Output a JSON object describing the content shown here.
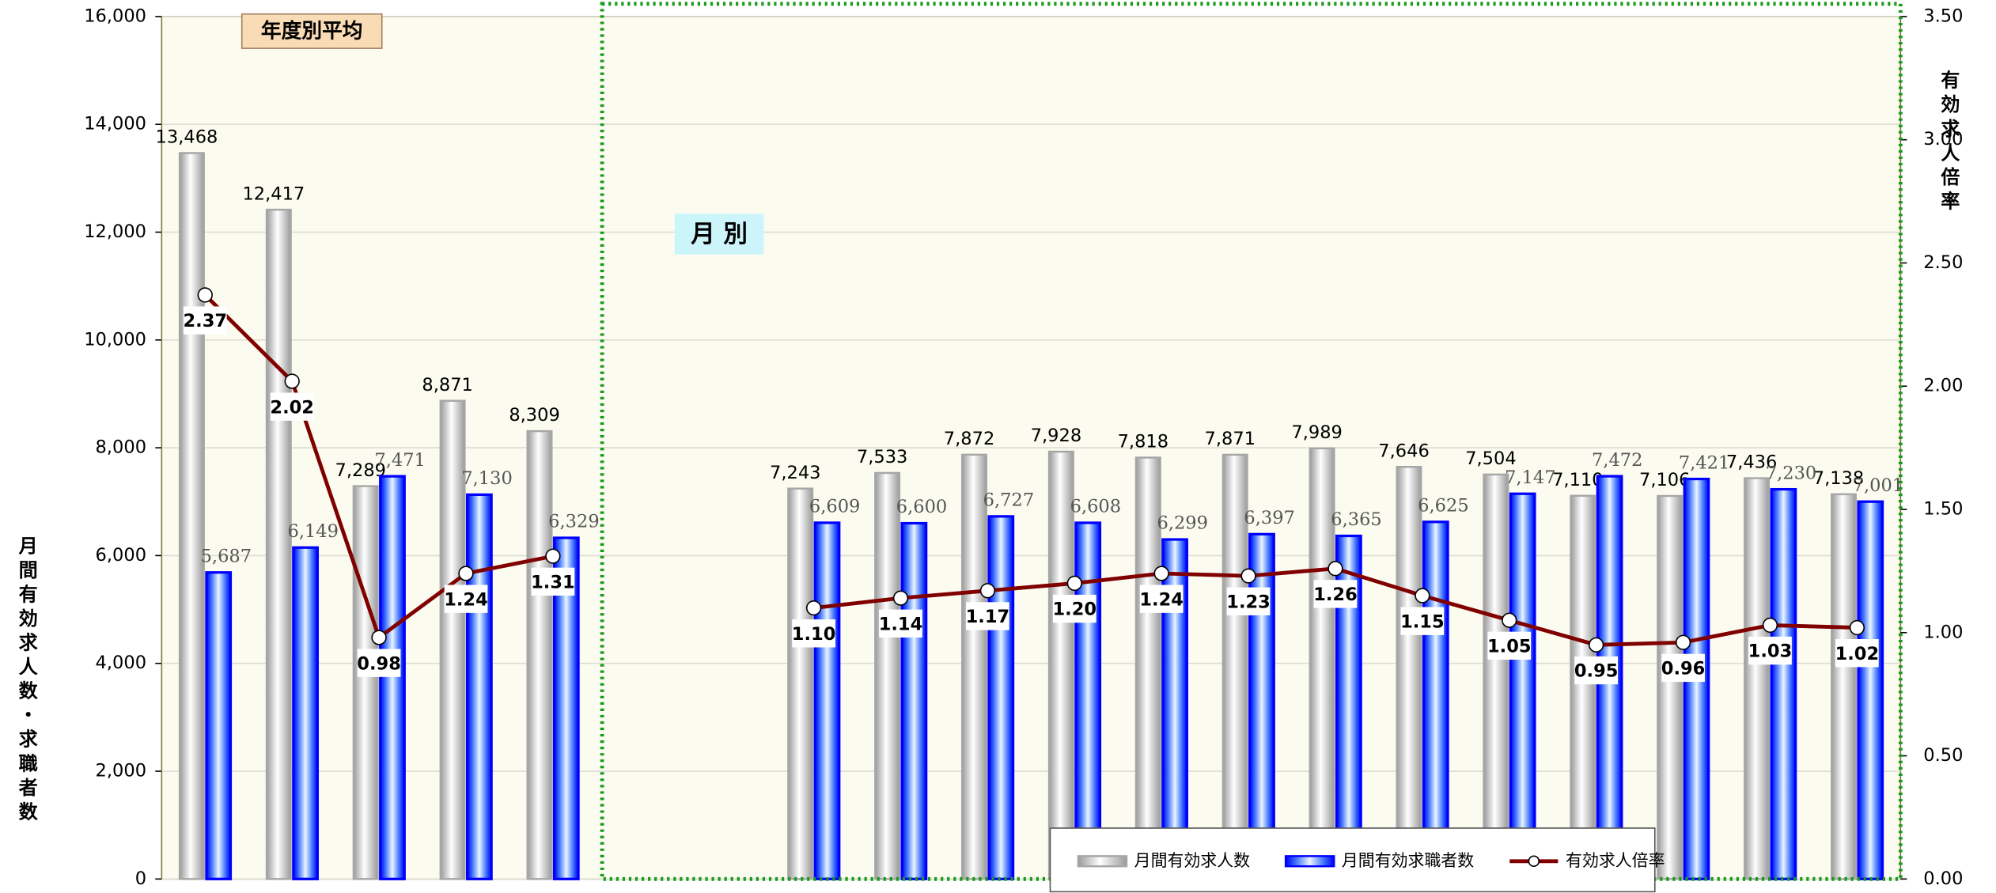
{
  "chart_data": {
    "type": "bar",
    "categories": [
      null,
      null,
      null,
      null,
      null,
      null,
      null,
      null,
      null,
      null,
      null,
      null,
      null,
      null,
      null,
      null,
      null,
      null,
      null,
      null
    ],
    "series": [
      {
        "name": "月間有効求人数",
        "color": "#a6a6a6",
        "values": [
          13468,
          12417,
          7289,
          8871,
          8309,
          null,
          null,
          7243,
          7533,
          7872,
          7928,
          7818,
          7871,
          7989,
          7646,
          7504,
          7110,
          7106,
          7436,
          7138
        ],
        "value_labels": [
          "13,468",
          "12,417",
          "7,289",
          "8,871",
          "8,309",
          null,
          null,
          "7,243",
          "7,533",
          "7,872",
          "7,928",
          "7,818",
          "7,871",
          "7,989",
          "7,646",
          "7,504",
          "7,110",
          "7,106",
          "7,436",
          "7,138"
        ]
      },
      {
        "name": "月間有効求職者数",
        "color": "#0000ff",
        "values": [
          5687,
          6149,
          7471,
          7130,
          6329,
          null,
          null,
          6609,
          6600,
          6727,
          6608,
          6299,
          6397,
          6365,
          6625,
          7147,
          7472,
          7421,
          7230,
          7001
        ],
        "value_labels": [
          "5,687",
          "6,149",
          "7,471",
          "7,130",
          "6,329",
          null,
          null,
          "6,609",
          "6,600",
          "6,727",
          "6,608",
          "6,299",
          "6,397",
          "6,365",
          "6,625",
          "7,147",
          "7,472",
          "7,421",
          "7,230",
          "7,001"
        ]
      },
      {
        "name": "有効求人倍率",
        "type": "line",
        "axis": "y2",
        "color": "#800000",
        "values": [
          2.37,
          2.02,
          0.98,
          1.24,
          1.31,
          null,
          null,
          1.1,
          1.14,
          1.17,
          1.2,
          1.24,
          1.23,
          1.26,
          1.15,
          1.05,
          0.95,
          0.96,
          1.03,
          1.02
        ],
        "value_labels": [
          "2.37",
          "2.02",
          "0.98",
          "1.24",
          "1.31",
          null,
          null,
          "1.10",
          "1.14",
          "1.17",
          "1.20",
          "1.24",
          "1.23",
          "1.26",
          "1.15",
          "1.05",
          "0.95",
          "0.96",
          "1.03",
          "1.02"
        ]
      }
    ],
    "ylim": [
      0,
      16000
    ],
    "yticks": [
      0,
      {
        "value": 2000,
        "label": "2,000"
      },
      {
        "value": 4000,
        "label": "4,000"
      },
      {
        "value": 6000,
        "label": "6,000"
      },
      {
        "value": 8000,
        "label": "8,000"
      },
      {
        "value": 10000,
        "label": "10,000"
      },
      {
        "value": 12000,
        "label": "12,000"
      },
      {
        "value": 14000,
        "label": "14,000"
      },
      {
        "value": 16000,
        "label": "16,000"
      }
    ],
    "y2lim": [
      0,
      3.5
    ],
    "y2ticks": [
      {
        "value": 0,
        "label": "0.00"
      },
      {
        "value": 0.5,
        "label": "0.50"
      },
      {
        "value": 1,
        "label": "1.00"
      },
      {
        "value": 1.5,
        "label": "1.50"
      },
      {
        "value": 2,
        "label": "2.00"
      },
      {
        "value": 2.5,
        "label": "2.50"
      },
      {
        "value": 3,
        "label": "3.00"
      },
      {
        "value": 3.5,
        "label": "3.50"
      }
    ],
    "y_label": "月間有効求人数・求職者数",
    "y2_label": "有効求人倍率",
    "annotations": [
      "年度別平均",
      "月 別"
    ],
    "grid": true,
    "legend": "bottom-right"
  }
}
